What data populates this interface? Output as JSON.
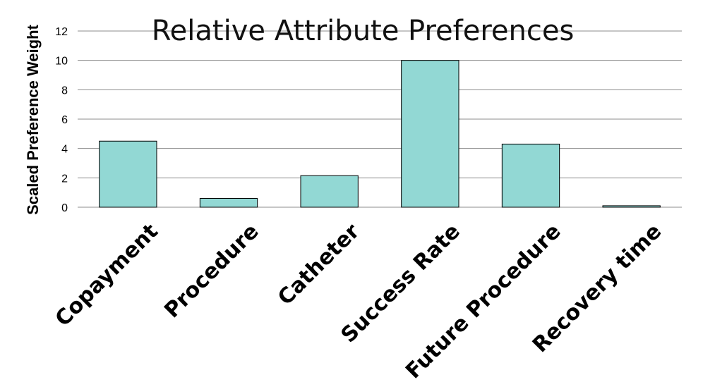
{
  "chart_data": {
    "type": "bar",
    "title": "Relative Attribute Preferences",
    "xlabel": "",
    "ylabel": "Scaled Preference Weight",
    "categories": [
      "Copayment",
      "Procedure",
      "Catheter",
      "Success Rate",
      "Future Procedure",
      "Recovery time"
    ],
    "values": [
      4.5,
      0.6,
      2.15,
      10.0,
      4.3,
      0.1
    ],
    "ylim": [
      0,
      12
    ],
    "yticks": [
      "0",
      "2",
      "4",
      "6",
      "8",
      "10",
      "12"
    ],
    "grid": true,
    "legend": "none",
    "colors": {
      "bar": "#92d8d4",
      "bar_edge": "#000000",
      "grid": "#8c8c8c"
    }
  }
}
